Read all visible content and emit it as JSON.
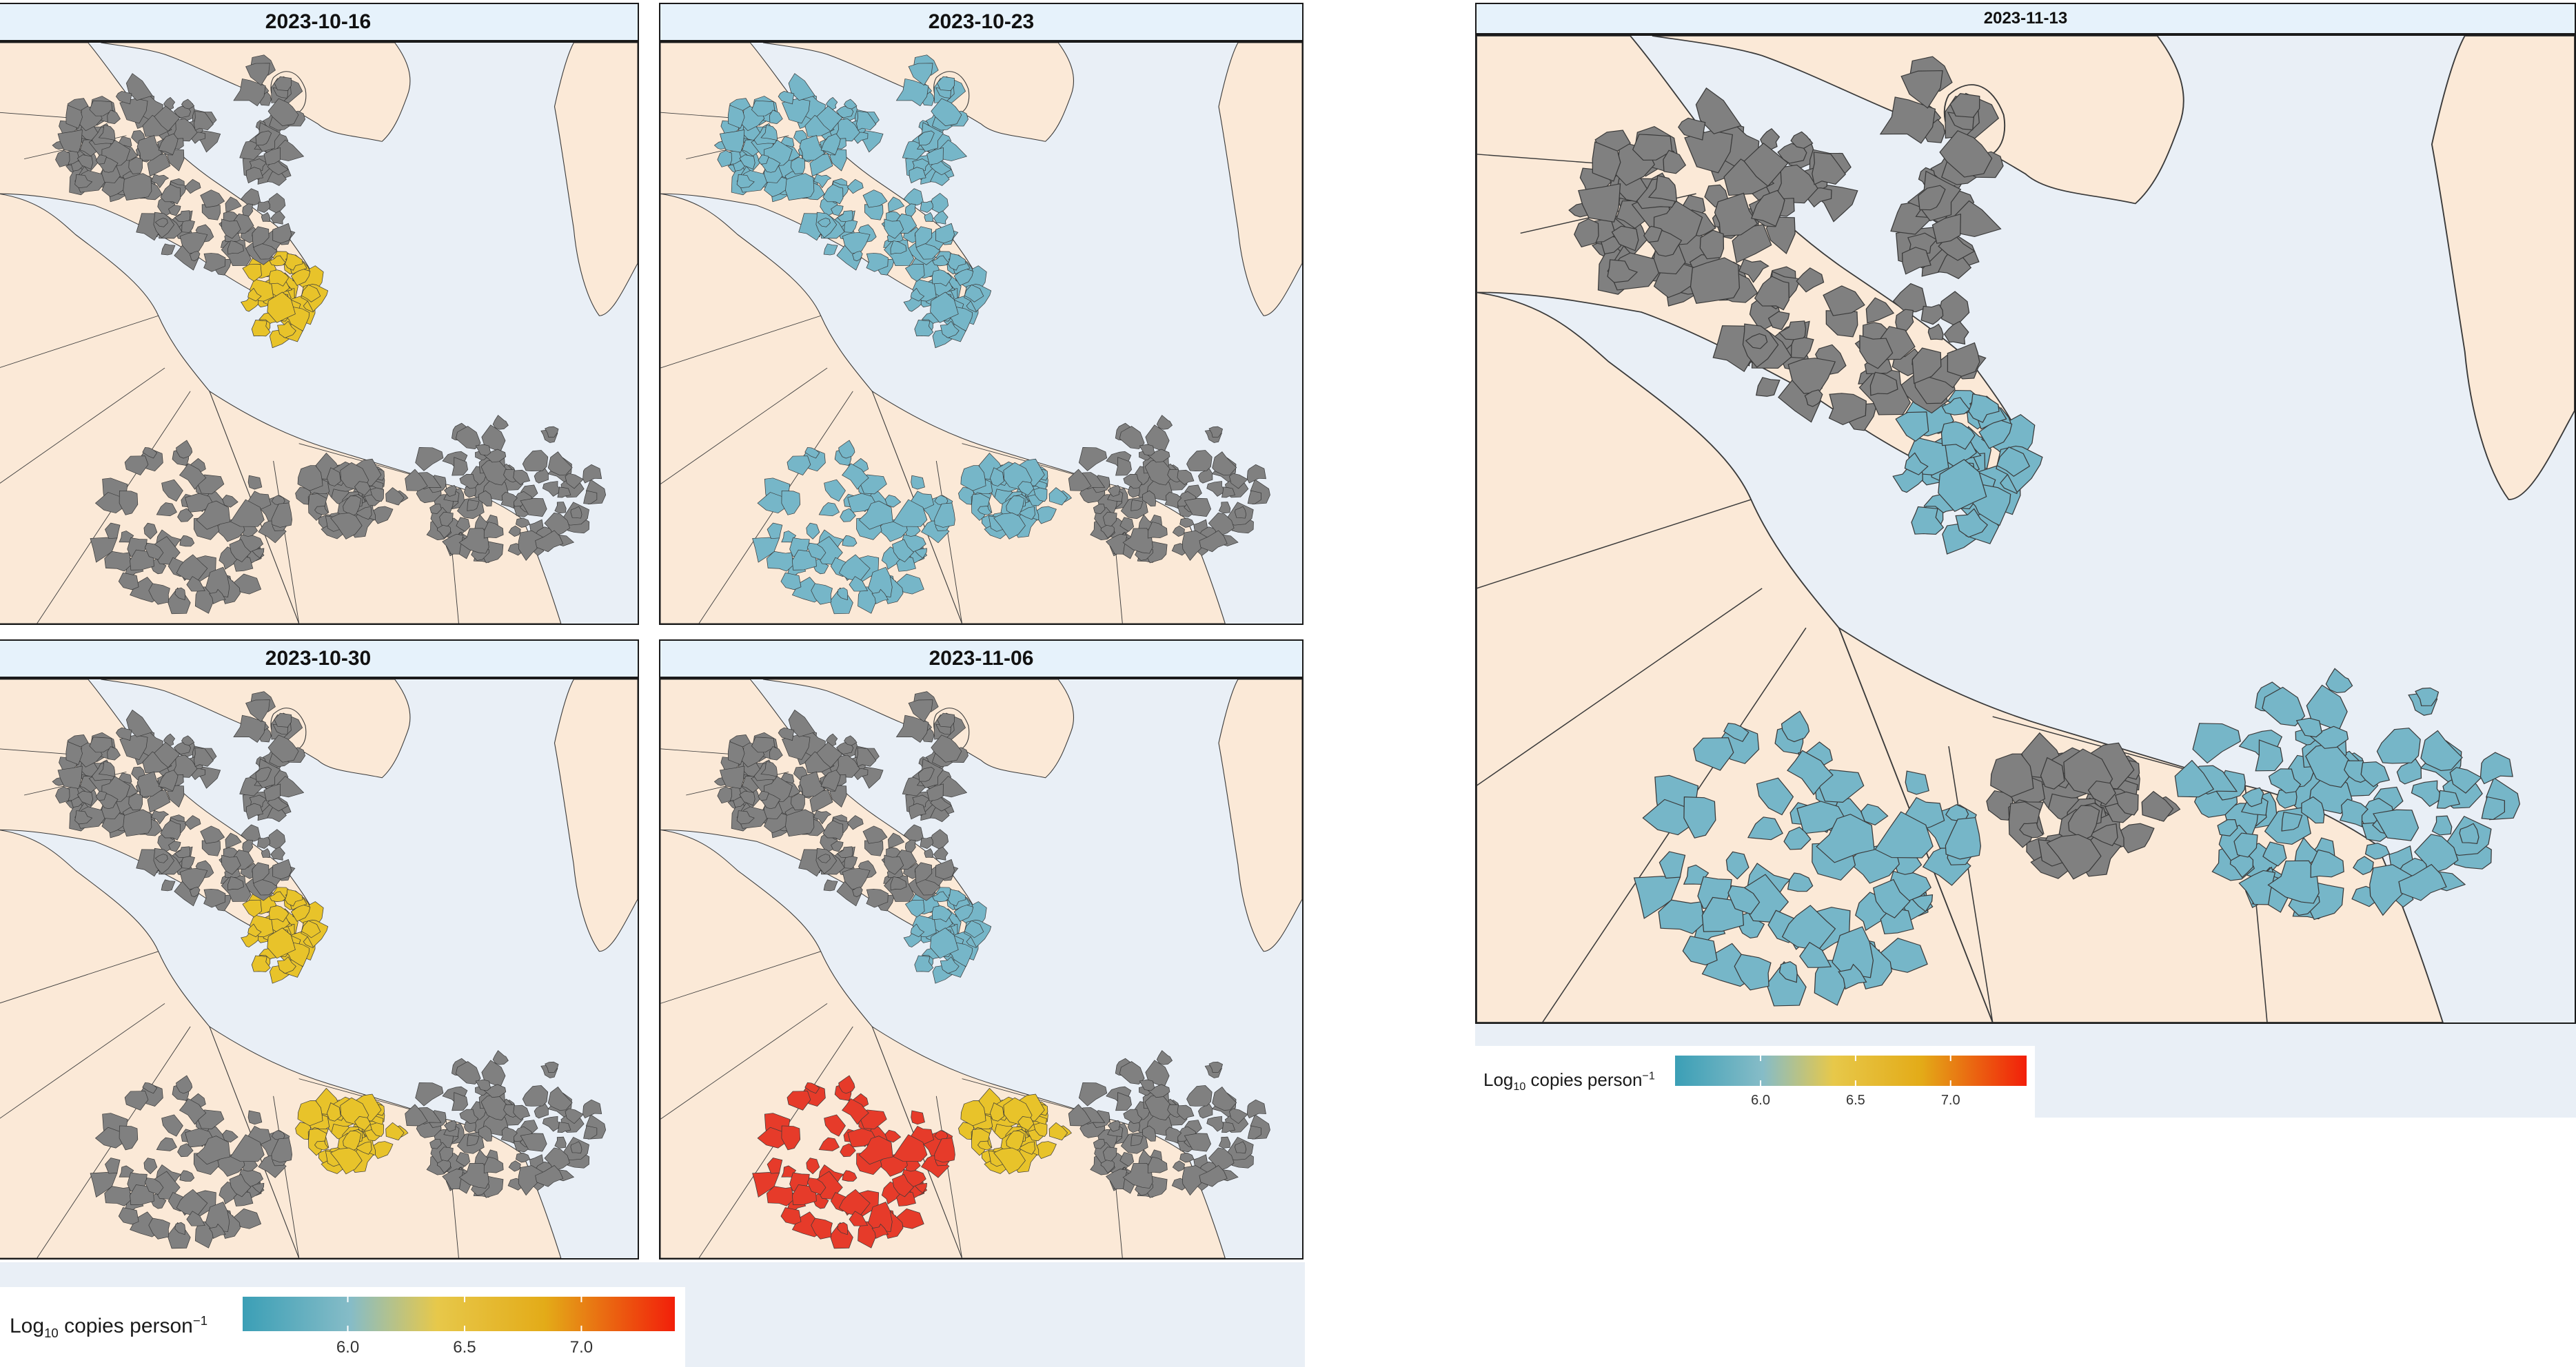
{
  "colors": {
    "water": "#e9eff6",
    "land": "#fbe9d7",
    "no_data": "#808080",
    "low_blue": "#76b6c8",
    "yellow": "#e8c32a",
    "orange_red": "#e63b2a",
    "strip": "#e6f2fb"
  },
  "panels": [
    {
      "title": "2023-10-16",
      "highlight": {
        "north": "no_data",
        "peninsula": "yellow",
        "center": "no_data",
        "west": "no_data",
        "east": "no_data"
      }
    },
    {
      "title": "2023-10-23",
      "highlight": {
        "north": "low_blue",
        "peninsula": "low_blue",
        "center": "low_blue",
        "west": "low_blue",
        "east": "no_data"
      }
    },
    {
      "title": "2023-10-30",
      "highlight": {
        "north": "no_data",
        "peninsula": "yellow",
        "center": "yellow",
        "west": "no_data",
        "east": "no_data"
      }
    },
    {
      "title": "2023-11-06",
      "highlight": {
        "north": "no_data",
        "peninsula": "low_blue",
        "center": "yellow",
        "west": "orange_red",
        "east": "no_data"
      }
    },
    {
      "title": "2023-11-13",
      "highlight": {
        "north": "no_data",
        "peninsula": "low_blue",
        "center": "no_data",
        "west": "low_blue",
        "east": "low_blue"
      }
    }
  ],
  "legend": {
    "title_prefix": "Log",
    "title_sub": "10",
    "title_main": " copies person",
    "title_sup": "−1",
    "ticks": [
      {
        "label": "6.0",
        "value": 6.0
      },
      {
        "label": "6.5",
        "value": 6.5
      },
      {
        "label": "7.0",
        "value": 7.0
      }
    ],
    "range": [
      5.55,
      7.4
    ]
  }
}
